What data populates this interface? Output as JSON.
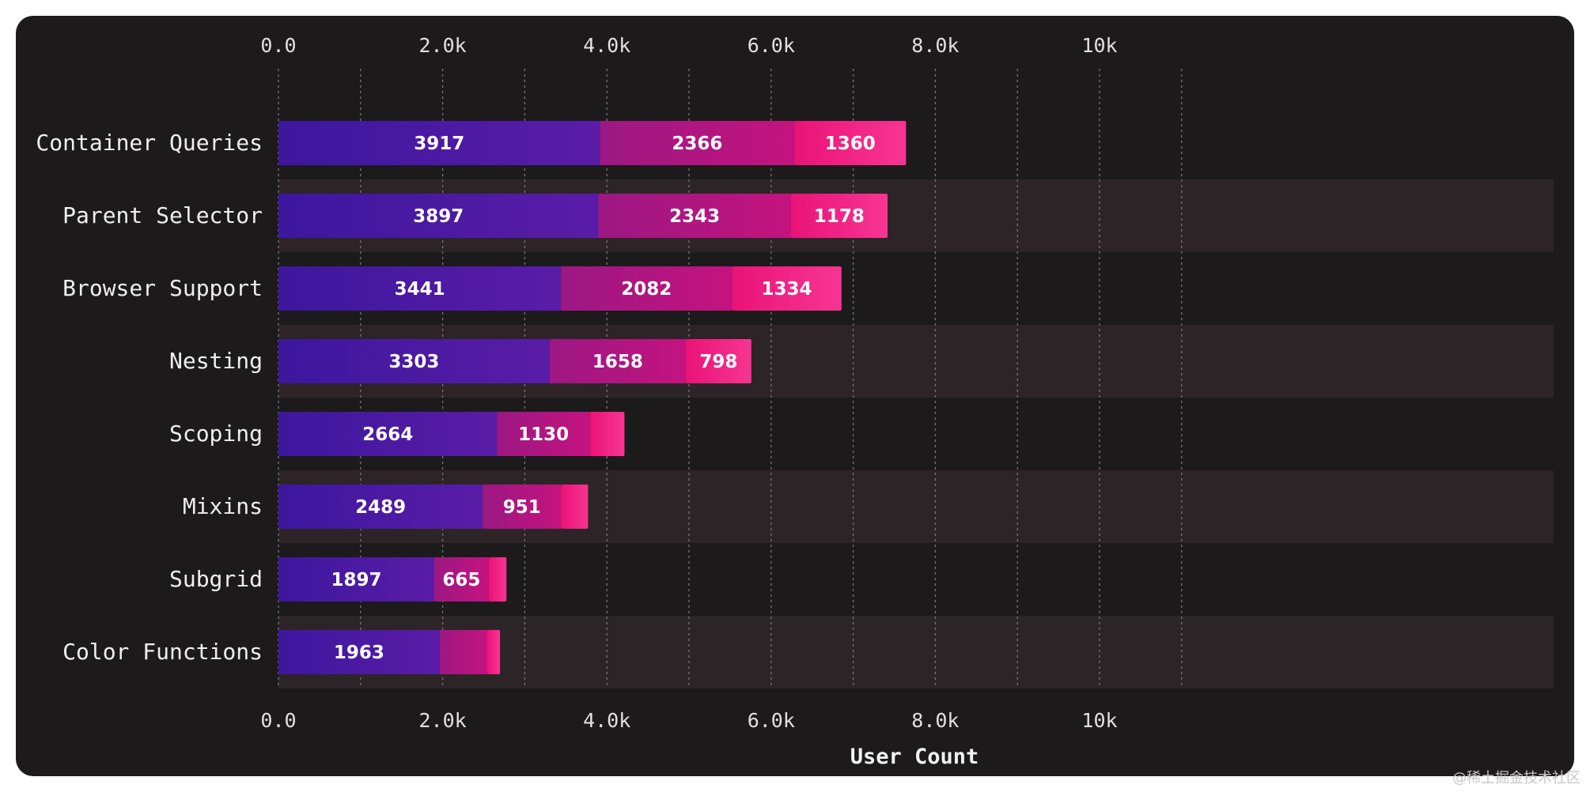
{
  "chart_data": {
    "type": "bar",
    "orientation": "horizontal",
    "stacked": true,
    "categories": [
      "Container Queries",
      "Parent Selector",
      "Browser Support",
      "Nesting",
      "Scoping",
      "Mixins",
      "Subgrid",
      "Color Functions"
    ],
    "series": [
      {
        "values": [
          3917,
          3897,
          3441,
          3303,
          2664,
          2489,
          1897,
          1963
        ],
        "color": "#4a1aa6"
      },
      {
        "values": [
          2366,
          2343,
          2082,
          1658,
          1130,
          951,
          665,
          575
        ],
        "color": "#b0157e"
      },
      {
        "values": [
          1360,
          1178,
          1334,
          798,
          420,
          330,
          215,
          160
        ],
        "color": "#f0157e"
      }
    ],
    "show_labels": [
      [
        true,
        true,
        true,
        true,
        true,
        true,
        true,
        true
      ],
      [
        true,
        true,
        true,
        true,
        true,
        true,
        true,
        false
      ],
      [
        true,
        true,
        true,
        true,
        false,
        false,
        false,
        false
      ]
    ],
    "xlim": [
      0,
      12000
    ],
    "x_ticks": [
      0,
      2000,
      4000,
      6000,
      8000,
      10000
    ],
    "x_tick_labels": [
      "0.0",
      "2.0k",
      "4.0k",
      "6.0k",
      "8.0k",
      "10k"
    ],
    "x_minor_ticks": [
      1000,
      3000,
      5000,
      7000,
      9000,
      11000
    ],
    "xlabel": "User Count",
    "grid": true,
    "alternating_row_bands": true,
    "colors": {
      "background": "#1c1a1b",
      "band": "#2d2428",
      "grid": "#7a7577"
    }
  },
  "watermark": "@稀土掘金技术社区"
}
